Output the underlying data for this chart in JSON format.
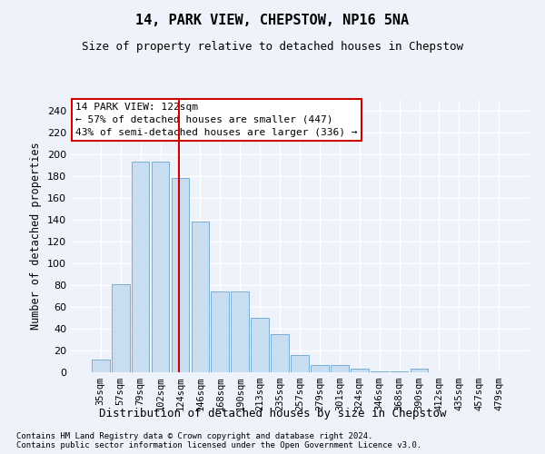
{
  "title": "14, PARK VIEW, CHEPSTOW, NP16 5NA",
  "subtitle": "Size of property relative to detached houses in Chepstow",
  "xlabel": "Distribution of detached houses by size in Chepstow",
  "ylabel": "Number of detached properties",
  "bar_labels": [
    "35sqm",
    "57sqm",
    "79sqm",
    "102sqm",
    "124sqm",
    "146sqm",
    "168sqm",
    "190sqm",
    "213sqm",
    "235sqm",
    "257sqm",
    "279sqm",
    "301sqm",
    "324sqm",
    "346sqm",
    "368sqm",
    "390sqm",
    "412sqm",
    "435sqm",
    "457sqm",
    "479sqm"
  ],
  "bar_values": [
    12,
    81,
    193,
    193,
    178,
    138,
    74,
    74,
    50,
    35,
    16,
    7,
    7,
    3,
    1,
    1,
    3,
    0,
    0,
    0,
    0
  ],
  "bar_color": "#c9ddf0",
  "bar_edge_color": "#7aadd4",
  "vline_color": "#cc0000",
  "vline_pos": 3.93,
  "annotation_text": "14 PARK VIEW: 122sqm\n← 57% of detached houses are smaller (447)\n43% of semi-detached houses are larger (336) →",
  "annotation_box_color": "#ffffff",
  "annotation_box_edge": "#cc0000",
  "ylim": [
    0,
    250
  ],
  "yticks": [
    0,
    20,
    40,
    60,
    80,
    100,
    120,
    140,
    160,
    180,
    200,
    220,
    240
  ],
  "footnote": "Contains HM Land Registry data © Crown copyright and database right 2024.\nContains public sector information licensed under the Open Government Licence v3.0.",
  "background_color": "#eef2fa",
  "grid_color": "#ffffff",
  "title_fontsize": 11,
  "subtitle_fontsize": 9
}
